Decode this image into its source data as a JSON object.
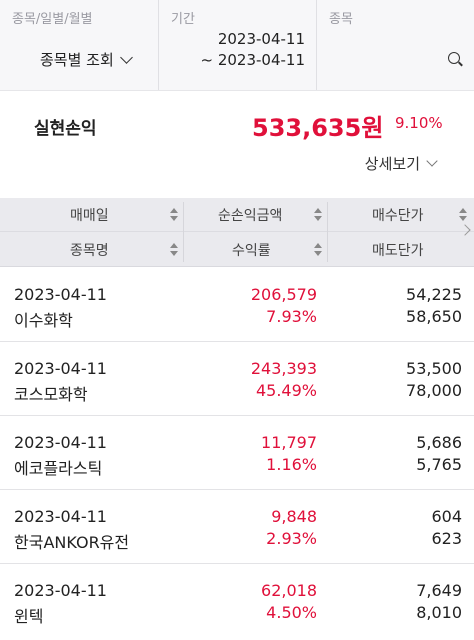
{
  "filter": {
    "type_label": "종목/일별/월별",
    "type_value": "종목별 조회",
    "period_label": "기간",
    "date_from": "2023-04-11",
    "date_to": "~ 2023-04-11",
    "stock_label": "종목"
  },
  "summary": {
    "label": "실현손익",
    "amount": "533,635원",
    "rate": "9.10%",
    "detail_label": "상세보기"
  },
  "table": {
    "headers": {
      "trade_date": "매매일",
      "net_pl": "순손익금액",
      "buy_price": "매수단가",
      "stock_name": "종목명",
      "return_rate": "수익률",
      "sell_price": "매도단가"
    },
    "rows": [
      {
        "date": "2023-04-11",
        "name": "이수화학",
        "pl": "206,579",
        "rate": "7.93%",
        "buy": "54,225",
        "sell": "58,650"
      },
      {
        "date": "2023-04-11",
        "name": "코스모화학",
        "pl": "243,393",
        "rate": "45.49%",
        "buy": "53,500",
        "sell": "78,000"
      },
      {
        "date": "2023-04-11",
        "name": "에코플라스틱",
        "pl": "11,797",
        "rate": "1.16%",
        "buy": "5,686",
        "sell": "5,765"
      },
      {
        "date": "2023-04-11",
        "name": "한국ANKOR유전",
        "pl": "9,848",
        "rate": "2.93%",
        "buy": "604",
        "sell": "623"
      },
      {
        "date": "2023-04-11",
        "name": "윈텍",
        "pl": "62,018",
        "rate": "4.50%",
        "buy": "7,649",
        "sell": "8,010"
      }
    ]
  },
  "colors": {
    "profit": "#e0103a",
    "header_bg": "#eaeaee",
    "filter_bg": "#f7f7f9"
  }
}
